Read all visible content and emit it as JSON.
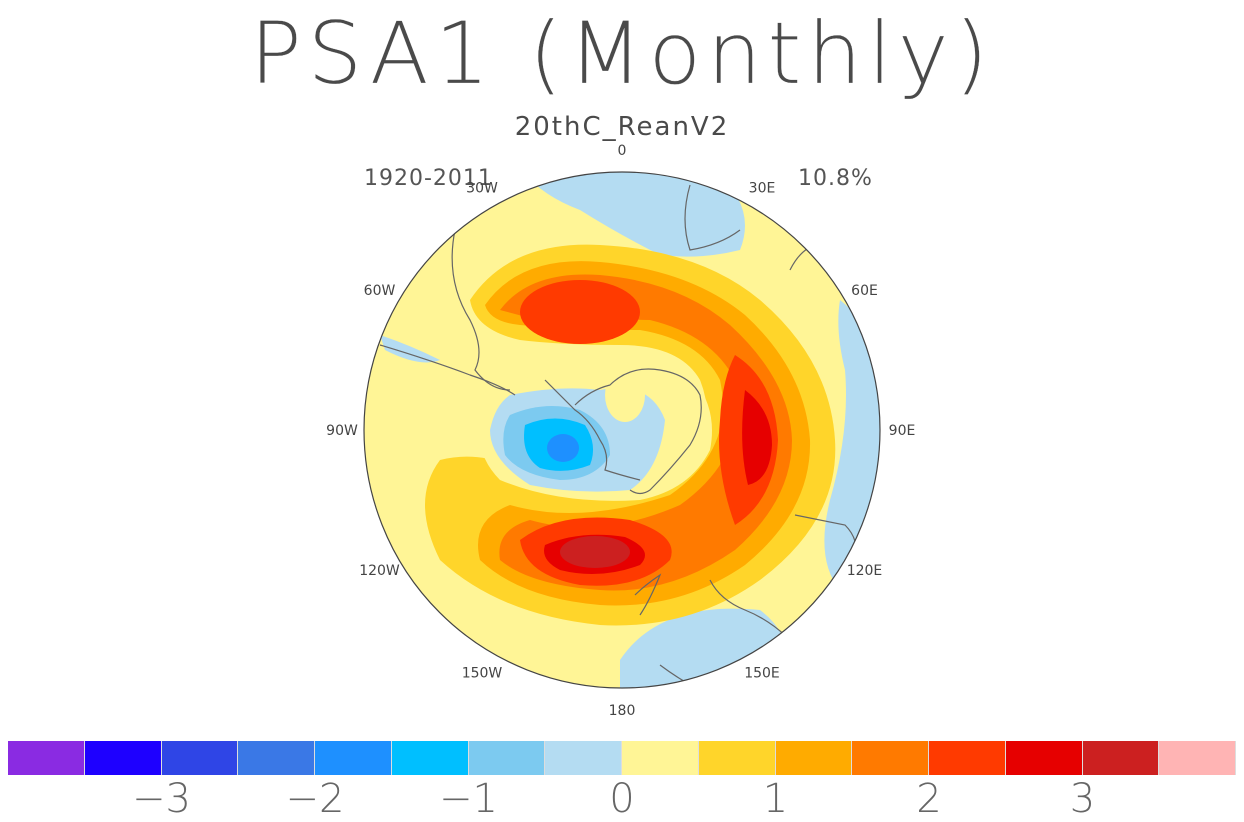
{
  "title": "PSA1 (Monthly)",
  "subtitle": "20thC_ReanV2",
  "period": "1920-2011",
  "variance": "10.8%",
  "longitude_labels": [
    "0",
    "30E",
    "60E",
    "90E",
    "120E",
    "150E",
    "180",
    "150W",
    "120W",
    "90W",
    "60W",
    "30W"
  ],
  "colorbar": {
    "colors": [
      "#8a2be2",
      "#1e00ff",
      "#2f45e6",
      "#3a78e6",
      "#1e90ff",
      "#00bfff",
      "#7ccaf0",
      "#b4dcf2",
      "#fff596",
      "#ffd52a",
      "#ffab00",
      "#ff7a00",
      "#ff3a00",
      "#e60000",
      "#cc2020",
      "#ffb4b4"
    ],
    "tick_labels": [
      "−3",
      "−2",
      "−1",
      "0",
      "1",
      "2",
      "3"
    ]
  },
  "map": {
    "projection": "south polar stereographic",
    "ocean_color": "#fff596",
    "land_outline_color": "#666666"
  }
}
